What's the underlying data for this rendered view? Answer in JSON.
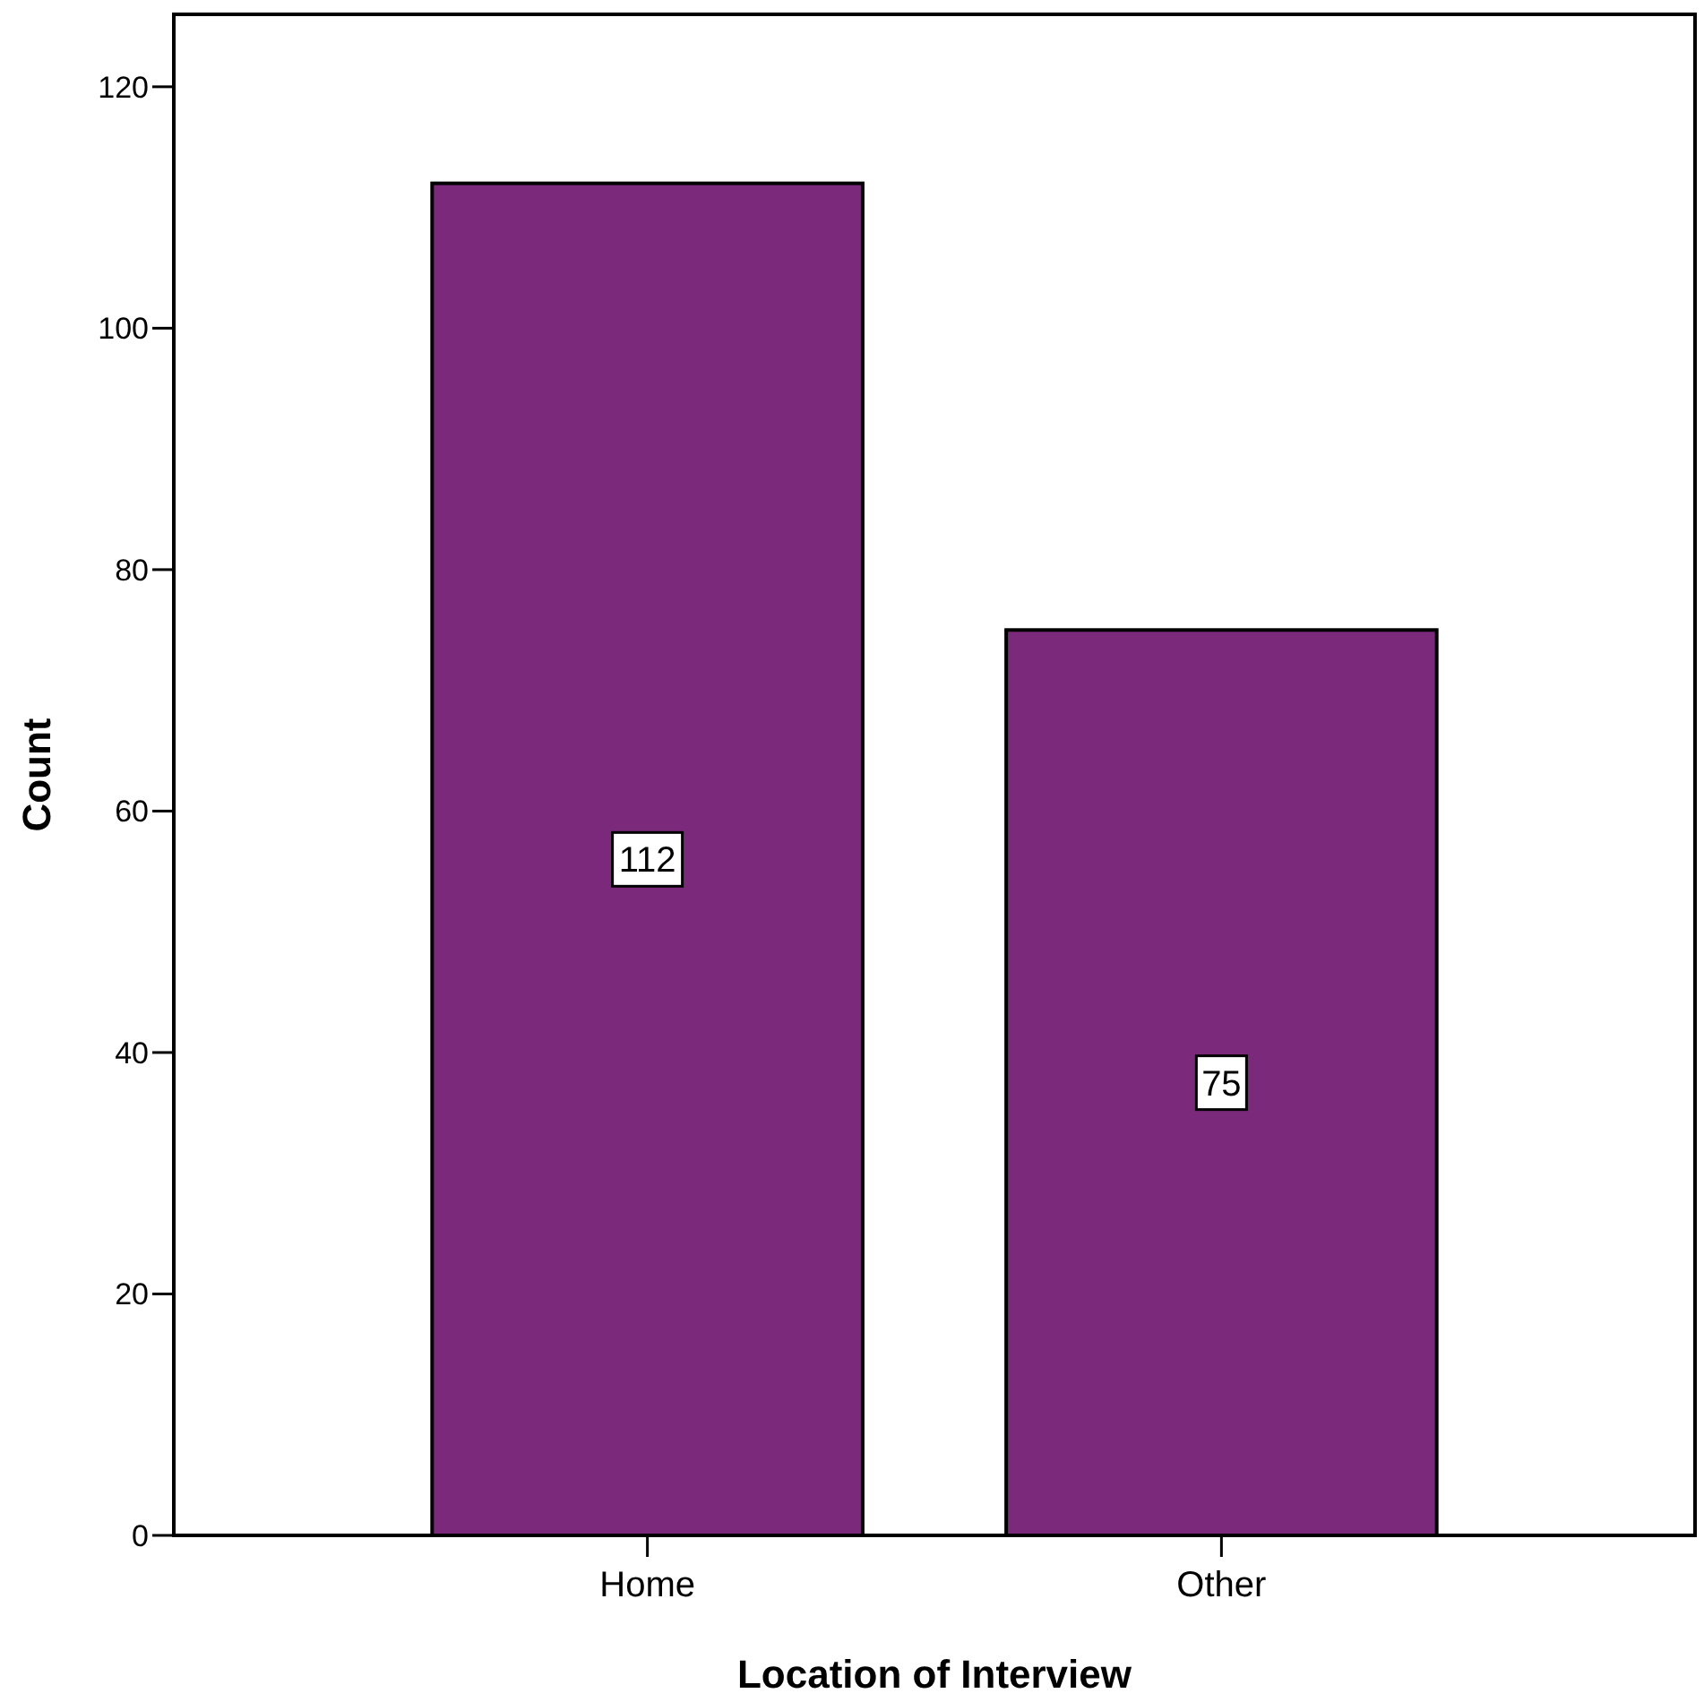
{
  "chart_data": {
    "type": "bar",
    "xlabel": "Location of Interview",
    "ylabel": "Count",
    "categories": [
      "Home",
      "Other"
    ],
    "values": [
      112,
      75
    ],
    "color": "#7b2a7b",
    "ylim": [
      0,
      126
    ],
    "yticks": [
      0,
      20,
      40,
      60,
      80,
      100,
      120
    ],
    "data_labels": true,
    "grid": false
  }
}
